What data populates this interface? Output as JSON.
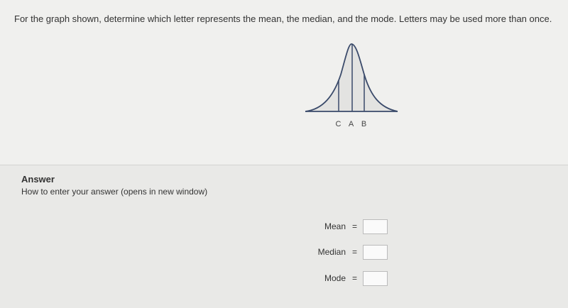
{
  "question": "For the graph shown, determine which letter represents the mean, the median, and the mode. Letters may be used more than once.",
  "graph": {
    "labels": [
      "C",
      "A",
      "B"
    ]
  },
  "answer": {
    "heading": "Answer",
    "help_link": "How to enter your answer (opens in new window)",
    "fields": [
      {
        "label": "Mean",
        "sign": "="
      },
      {
        "label": "Median",
        "sign": "="
      },
      {
        "label": "Mode",
        "sign": "="
      }
    ]
  }
}
